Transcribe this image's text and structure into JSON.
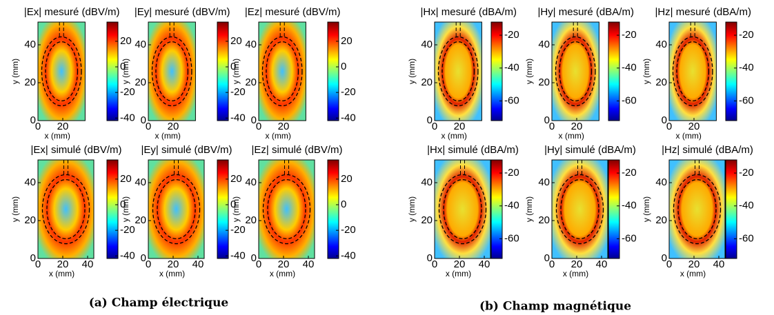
{
  "groups": [
    {
      "caption": "(a) Champ électrique",
      "panels": [
        {
          "title": "|Ex| mesuré (dBV/m)",
          "xlabel": "x (mm)",
          "ylabel": "y (mm)",
          "xlim": [
            0,
            38
          ],
          "ylim": [
            0,
            52
          ],
          "xticks": [
            0,
            20
          ],
          "yticks": [
            0,
            20,
            40
          ],
          "clim": [
            -42,
            35
          ],
          "cticks": [
            20,
            0,
            -20,
            -40
          ]
        },
        {
          "title": "|Ey| mesuré (dBV/m)",
          "xlabel": "x (mm)",
          "ylabel": "y (mm)",
          "xlim": [
            0,
            38
          ],
          "ylim": [
            0,
            52
          ],
          "xticks": [
            0,
            20
          ],
          "yticks": [
            0,
            20,
            40
          ],
          "clim": [
            -42,
            35
          ],
          "cticks": [
            20,
            0,
            -20,
            -40
          ]
        },
        {
          "title": "|Ez| mesuré (dBV/m)",
          "xlabel": "x (mm)",
          "ylabel": "y (mm)",
          "xlim": [
            0,
            38
          ],
          "ylim": [
            0,
            52
          ],
          "xticks": [
            0,
            20
          ],
          "yticks": [
            0,
            20,
            40
          ],
          "clim": [
            -42,
            35
          ],
          "cticks": [
            20,
            0,
            -20,
            -40
          ]
        },
        {
          "title": "|Ex| simulé (dBV/m)",
          "xlabel": "x (mm)",
          "ylabel": "y (mm)",
          "xlim": [
            0,
            45
          ],
          "ylim": [
            0,
            52
          ],
          "xticks": [
            0,
            20,
            40
          ],
          "yticks": [
            0,
            20,
            40
          ],
          "clim": [
            -42,
            35
          ],
          "cticks": [
            20,
            0,
            -20,
            -40
          ]
        },
        {
          "title": "|Ey| simulé (dBV/m)",
          "xlabel": "x (mm)",
          "ylabel": "y (mm)",
          "xlim": [
            0,
            45
          ],
          "ylim": [
            0,
            52
          ],
          "xticks": [
            0,
            20,
            40
          ],
          "yticks": [
            0,
            20,
            40
          ],
          "clim": [
            -42,
            35
          ],
          "cticks": [
            20,
            0,
            -20,
            -40
          ]
        },
        {
          "title": "|Ez| simulé (dBV/m)",
          "xlabel": "x (mm)",
          "ylabel": "y (mm)",
          "xlim": [
            0,
            45
          ],
          "ylim": [
            0,
            52
          ],
          "xticks": [
            0,
            20,
            40
          ],
          "yticks": [
            0,
            20,
            40
          ],
          "clim": [
            -42,
            35
          ],
          "cticks": [
            20,
            0,
            -20,
            -40
          ]
        }
      ]
    },
    {
      "caption": "(b) Champ magnétique",
      "panels": [
        {
          "title": "|Hx| mesuré (dBA/m)",
          "xlabel": "x (mm)",
          "ylabel": "y (mm)",
          "xlim": [
            0,
            38
          ],
          "ylim": [
            0,
            52
          ],
          "xticks": [
            0,
            20
          ],
          "yticks": [
            0,
            20,
            40
          ],
          "clim": [
            -72,
            -12
          ],
          "cticks": [
            -20,
            -40,
            -60
          ]
        },
        {
          "title": "|Hy| mesuré (dBA/m)",
          "xlabel": "x (mm)",
          "ylabel": "y (mm)",
          "xlim": [
            0,
            38
          ],
          "ylim": [
            0,
            52
          ],
          "xticks": [
            0,
            20
          ],
          "yticks": [
            0,
            20,
            40
          ],
          "clim": [
            -72,
            -12
          ],
          "cticks": [
            -20,
            -40,
            -60
          ]
        },
        {
          "title": "|Hz| mesuré (dBA/m)",
          "xlabel": "x (mm)",
          "ylabel": "y (mm)",
          "xlim": [
            0,
            38
          ],
          "ylim": [
            0,
            52
          ],
          "xticks": [
            0,
            20
          ],
          "yticks": [
            0,
            20,
            40
          ],
          "clim": [
            -72,
            -12
          ],
          "cticks": [
            -20,
            -40,
            -60
          ]
        },
        {
          "title": "|Hx| simulé (dBA/m)",
          "xlabel": "x (mm)",
          "ylabel": "y (mm)",
          "xlim": [
            0,
            45
          ],
          "ylim": [
            0,
            52
          ],
          "xticks": [
            0,
            20,
            40
          ],
          "yticks": [
            0,
            20,
            40
          ],
          "clim": [
            -72,
            -12
          ],
          "cticks": [
            -20,
            -40,
            -60
          ]
        },
        {
          "title": "|Hy| simulé (dBA/m)",
          "xlabel": "x (mm)",
          "ylabel": "y (mm)",
          "xlim": [
            0,
            45
          ],
          "ylim": [
            0,
            52
          ],
          "xticks": [
            0,
            20,
            40
          ],
          "yticks": [
            0,
            20,
            40
          ],
          "clim": [
            -72,
            -12
          ],
          "cticks": [
            -20,
            -40,
            -60
          ]
        },
        {
          "title": "|Hz| simulé (dBA/m)",
          "xlabel": "x (mm)",
          "ylabel": "y (mm)",
          "xlim": [
            0,
            45
          ],
          "ylim": [
            0,
            52
          ],
          "xticks": [
            0,
            20,
            40
          ],
          "yticks": [
            0,
            20,
            40
          ],
          "clim": [
            -72,
            -12
          ],
          "cticks": [
            -20,
            -40,
            -60
          ]
        }
      ]
    }
  ]
}
